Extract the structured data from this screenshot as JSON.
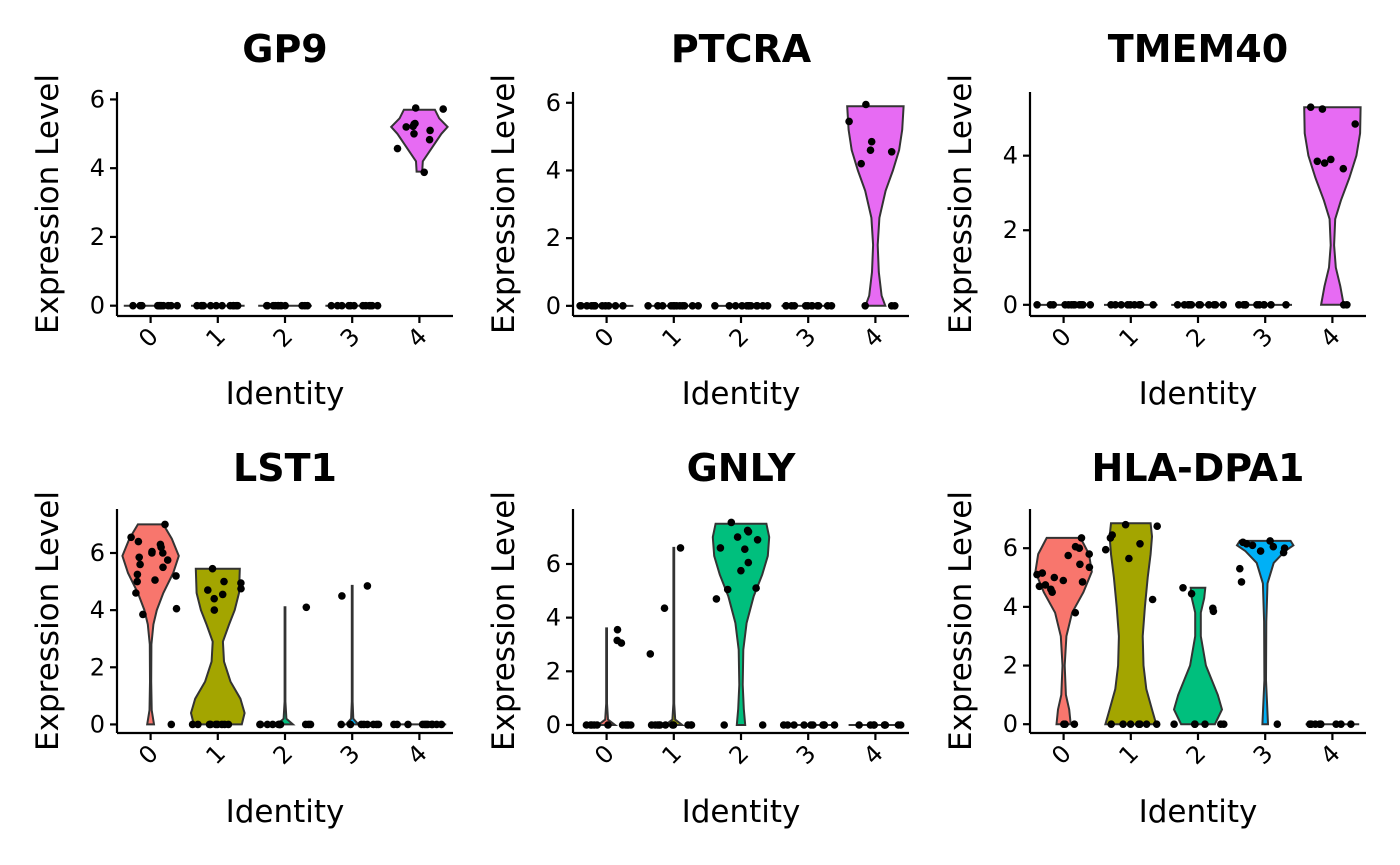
{
  "chart_data": [
    {
      "type": "violin",
      "title": "GP9",
      "xlabel": "Identity",
      "ylabel": "Expression Level",
      "categories": [
        "0",
        "1",
        "2",
        "3",
        "4"
      ],
      "ylim": [
        -0.3,
        6.1
      ],
      "yticks": [
        0,
        2,
        4,
        6
      ],
      "colors": [
        "#F8766D",
        "#A3A500",
        "#00BF7D",
        "#00B0F6",
        "#E76BF3"
      ],
      "groups": [
        {
          "category": "0",
          "violin": null,
          "values": [
            0,
            0,
            0,
            0,
            0,
            0,
            0,
            0,
            0,
            0,
            0,
            0
          ]
        },
        {
          "category": "1",
          "violin": null,
          "values": [
            0,
            0,
            0,
            0,
            0,
            0,
            0,
            0,
            0,
            0,
            0,
            0
          ]
        },
        {
          "category": "2",
          "violin": null,
          "values": [
            0,
            0,
            0,
            0,
            0,
            0,
            0,
            0,
            0,
            0,
            0,
            0
          ]
        },
        {
          "category": "3",
          "violin": null,
          "values": [
            0,
            0,
            0,
            0,
            0,
            0,
            0,
            0,
            0,
            0,
            0,
            0
          ]
        },
        {
          "category": "4",
          "violin": [
            [
              3.9,
              0.1
            ],
            [
              4.2,
              0.12
            ],
            [
              4.6,
              0.45
            ],
            [
              5.0,
              0.78
            ],
            [
              5.2,
              1.0
            ],
            [
              5.45,
              0.7
            ],
            [
              5.7,
              0.55
            ]
          ],
          "values": [
            3.88,
            4.57,
            4.83,
            5.0,
            5.1,
            5.2,
            5.22,
            5.28,
            5.3,
            5.72,
            5.75
          ]
        }
      ]
    },
    {
      "type": "violin",
      "title": "PTCRA",
      "xlabel": "Identity",
      "ylabel": "Expression Level",
      "categories": [
        "0",
        "1",
        "2",
        "3",
        "4"
      ],
      "ylim": [
        -0.3,
        6.2
      ],
      "yticks": [
        0,
        2,
        4,
        6
      ],
      "colors": [
        "#F8766D",
        "#A3A500",
        "#00BF7D",
        "#00B0F6",
        "#E76BF3"
      ],
      "groups": [
        {
          "category": "0",
          "violin": null,
          "values": [
            0,
            0,
            0,
            0,
            0,
            0,
            0,
            0,
            0,
            0,
            0,
            0
          ]
        },
        {
          "category": "1",
          "violin": null,
          "values": [
            0,
            0,
            0,
            0,
            0,
            0,
            0,
            0,
            0,
            0,
            0,
            0
          ]
        },
        {
          "category": "2",
          "violin": null,
          "values": [
            0,
            0,
            0,
            0,
            0,
            0,
            0,
            0,
            0,
            0,
            0,
            0
          ]
        },
        {
          "category": "3",
          "violin": null,
          "values": [
            0,
            0,
            0,
            0,
            0,
            0,
            0,
            0,
            0,
            0,
            0,
            0
          ]
        },
        {
          "category": "4",
          "violin": [
            [
              0,
              0.35
            ],
            [
              0.3,
              0.22
            ],
            [
              1.0,
              0.12
            ],
            [
              1.8,
              0.08
            ],
            [
              2.6,
              0.14
            ],
            [
              3.4,
              0.36
            ],
            [
              4.0,
              0.62
            ],
            [
              4.6,
              0.84
            ],
            [
              5.2,
              0.95
            ],
            [
              5.9,
              1.0
            ]
          ],
          "values": [
            0,
            0,
            0,
            4.2,
            4.55,
            4.6,
            4.85,
            5.45,
            5.95
          ]
        }
      ]
    },
    {
      "type": "violin",
      "title": "TMEM40",
      "xlabel": "Identity",
      "ylabel": "Expression Level",
      "categories": [
        "0",
        "1",
        "2",
        "3",
        "4"
      ],
      "ylim": [
        -0.3,
        5.6
      ],
      "yticks": [
        0,
        2,
        4
      ],
      "colors": [
        "#F8766D",
        "#A3A500",
        "#00BF7D",
        "#00B0F6",
        "#E76BF3"
      ],
      "groups": [
        {
          "category": "0",
          "violin": null,
          "values": [
            0,
            0,
            0,
            0,
            0,
            0,
            0,
            0,
            0,
            0,
            0,
            0
          ]
        },
        {
          "category": "1",
          "violin": null,
          "values": [
            0,
            0,
            0,
            0,
            0,
            0,
            0,
            0,
            0,
            0,
            0,
            0
          ]
        },
        {
          "category": "2",
          "violin": null,
          "values": [
            0,
            0,
            0,
            0,
            0,
            0,
            0,
            0,
            0,
            0,
            0,
            0
          ]
        },
        {
          "category": "3",
          "violin": null,
          "values": [
            0,
            0,
            0,
            0,
            0,
            0,
            0,
            0,
            0,
            0,
            0,
            0
          ]
        },
        {
          "category": "4",
          "violin": [
            [
              0,
              0.4
            ],
            [
              0.5,
              0.28
            ],
            [
              1.0,
              0.12
            ],
            [
              1.6,
              0.06
            ],
            [
              2.3,
              0.1
            ],
            [
              2.8,
              0.3
            ],
            [
              3.4,
              0.6
            ],
            [
              4.0,
              0.85
            ],
            [
              4.6,
              0.98
            ],
            [
              5.3,
              1.0
            ]
          ],
          "values": [
            0,
            0,
            3.65,
            3.8,
            3.85,
            3.9,
            4.85,
            5.25,
            5.3
          ]
        }
      ]
    },
    {
      "type": "violin",
      "title": "LST1",
      "xlabel": "Identity",
      "ylabel": "Expression Level",
      "categories": [
        "0",
        "1",
        "2",
        "3",
        "4"
      ],
      "ylim": [
        -0.3,
        7.4
      ],
      "yticks": [
        0,
        2,
        4,
        6
      ],
      "colors": [
        "#F8766D",
        "#A3A500",
        "#00BF7D",
        "#00B0F6",
        "#E76BF3"
      ],
      "groups": [
        {
          "category": "0",
          "violin": [
            [
              0,
              0.12
            ],
            [
              0.5,
              0.04
            ],
            [
              1.5,
              0.02
            ],
            [
              2.8,
              0.03
            ],
            [
              3.5,
              0.1
            ],
            [
              4.0,
              0.22
            ],
            [
              4.6,
              0.45
            ],
            [
              5.3,
              0.8
            ],
            [
              5.9,
              1.0
            ],
            [
              6.5,
              0.75
            ],
            [
              7.0,
              0.45
            ]
          ],
          "values": [
            0,
            3.85,
            4.05,
            4.6,
            5.0,
            5.05,
            5.2,
            5.25,
            5.5,
            5.6,
            5.75,
            5.85,
            6.0,
            6.0,
            6.05,
            6.2,
            6.3,
            6.4,
            6.55,
            7.0
          ]
        },
        {
          "category": "1",
          "violin": [
            [
              0,
              0.85
            ],
            [
              0.4,
              0.95
            ],
            [
              0.9,
              0.8
            ],
            [
              1.5,
              0.45
            ],
            [
              2.2,
              0.22
            ],
            [
              2.9,
              0.18
            ],
            [
              3.5,
              0.4
            ],
            [
              4.0,
              0.6
            ],
            [
              4.6,
              0.75
            ],
            [
              5.45,
              0.78
            ]
          ],
          "values": [
            0,
            0,
            0,
            0,
            0,
            0,
            0,
            0,
            0,
            4.0,
            4.4,
            4.55,
            4.7,
            4.75,
            4.95,
            5.0,
            5.45
          ]
        },
        {
          "category": "2",
          "violin": [
            [
              0,
              0.28
            ],
            [
              0.2,
              0.05
            ],
            [
              0.8,
              0.015
            ],
            [
              4.1,
              0.015
            ]
          ],
          "values": [
            0,
            0,
            0,
            0,
            0,
            0,
            0,
            0,
            0,
            0,
            0,
            4.1
          ]
        },
        {
          "category": "3",
          "violin": [
            [
              0,
              0.22
            ],
            [
              0.2,
              0.04
            ],
            [
              0.8,
              0.015
            ],
            [
              4.85,
              0.015
            ]
          ],
          "values": [
            0,
            0,
            0,
            0,
            0,
            0,
            0,
            0,
            4.5,
            4.85
          ]
        },
        {
          "category": "4",
          "violin": null,
          "values": [
            0,
            0,
            0,
            0,
            0,
            0,
            0,
            0,
            0,
            0,
            0
          ]
        }
      ]
    },
    {
      "type": "violin",
      "title": "GNLY",
      "xlabel": "Identity",
      "ylabel": "Expression Level",
      "categories": [
        "0",
        "1",
        "2",
        "3",
        "4"
      ],
      "ylim": [
        -0.3,
        7.9
      ],
      "yticks": [
        0,
        2,
        4,
        6
      ],
      "colors": [
        "#F8766D",
        "#A3A500",
        "#00BF7D",
        "#00B0F6",
        "#E76BF3"
      ],
      "groups": [
        {
          "category": "0",
          "violin": [
            [
              0,
              0.3
            ],
            [
              0.2,
              0.05
            ],
            [
              0.8,
              0.015
            ],
            [
              3.6,
              0.015
            ]
          ],
          "values": [
            0,
            0,
            0,
            0,
            0,
            0,
            0,
            0,
            0,
            0,
            0,
            3.05,
            3.15,
            3.55
          ]
        },
        {
          "category": "1",
          "violin": [
            [
              0,
              0.3
            ],
            [
              0.2,
              0.05
            ],
            [
              0.8,
              0.015
            ],
            [
              6.6,
              0.015
            ]
          ],
          "values": [
            0,
            0,
            0,
            0,
            0,
            0,
            0,
            0,
            0,
            0,
            0,
            2.65,
            4.35,
            6.6
          ]
        },
        {
          "category": "2",
          "violin": [
            [
              0,
              0.15
            ],
            [
              0.6,
              0.1
            ],
            [
              1.5,
              0.06
            ],
            [
              2.8,
              0.08
            ],
            [
              3.8,
              0.2
            ],
            [
              4.8,
              0.45
            ],
            [
              5.6,
              0.75
            ],
            [
              6.3,
              0.95
            ],
            [
              7.0,
              1.0
            ],
            [
              7.5,
              0.9
            ]
          ],
          "values": [
            0,
            0,
            4.7,
            5.05,
            5.1,
            5.75,
            6.05,
            6.55,
            6.6,
            6.9,
            7.0,
            7.2,
            7.25,
            7.55
          ]
        },
        {
          "category": "3",
          "violin": null,
          "values": [
            0,
            0,
            0,
            0,
            0,
            0,
            0,
            0,
            0,
            0
          ]
        },
        {
          "category": "4",
          "violin": null,
          "values": [
            0,
            0,
            0,
            0,
            0,
            0,
            0,
            0,
            0
          ]
        }
      ]
    },
    {
      "type": "violin",
      "title": "HLA-DPA1",
      "xlabel": "Identity",
      "ylabel": "Expression Level",
      "categories": [
        "0",
        "1",
        "2",
        "3",
        "4"
      ],
      "ylim": [
        -0.3,
        7.2
      ],
      "yticks": [
        0,
        2,
        4,
        6
      ],
      "colors": [
        "#F8766D",
        "#A3A500",
        "#00BF7D",
        "#00B0F6",
        "#E76BF3"
      ],
      "groups": [
        {
          "category": "0",
          "violin": [
            [
              0,
              0.25
            ],
            [
              0.5,
              0.2
            ],
            [
              1.0,
              0.08
            ],
            [
              2.0,
              0.04
            ],
            [
              3.0,
              0.1
            ],
            [
              3.8,
              0.3
            ],
            [
              4.5,
              0.7
            ],
            [
              5.2,
              1.0
            ],
            [
              5.8,
              0.9
            ],
            [
              6.35,
              0.6
            ]
          ],
          "values": [
            0,
            0,
            0,
            3.8,
            4.5,
            4.6,
            4.7,
            4.75,
            4.85,
            4.9,
            5.0,
            5.1,
            5.15,
            5.35,
            5.45,
            5.75,
            5.8,
            6.0,
            6.05,
            6.35
          ]
        },
        {
          "category": "1",
          "violin": [
            [
              0,
              0.9
            ],
            [
              0.5,
              0.75
            ],
            [
              1.2,
              0.55
            ],
            [
              2.0,
              0.45
            ],
            [
              3.0,
              0.42
            ],
            [
              4.0,
              0.5
            ],
            [
              5.0,
              0.6
            ],
            [
              5.8,
              0.7
            ],
            [
              6.4,
              0.75
            ],
            [
              6.85,
              0.7
            ]
          ],
          "values": [
            0,
            0,
            0,
            0,
            0,
            0,
            0,
            0,
            4.25,
            5.65,
            5.95,
            6.15,
            6.35,
            6.45,
            6.75,
            6.8
          ]
        },
        {
          "category": "2",
          "violin": [
            [
              0,
              0.6
            ],
            [
              0.5,
              0.85
            ],
            [
              1.0,
              0.7
            ],
            [
              2.0,
              0.28
            ],
            [
              3.0,
              0.1
            ],
            [
              3.8,
              0.1
            ],
            [
              4.3,
              0.22
            ],
            [
              4.65,
              0.26
            ]
          ],
          "values": [
            0,
            0,
            0,
            0,
            0,
            0,
            3.85,
            3.95,
            4.45,
            4.65
          ]
        },
        {
          "category": "3",
          "violin": [
            [
              0,
              0.1
            ],
            [
              1.5,
              0.03
            ],
            [
              3.5,
              0.04
            ],
            [
              4.8,
              0.08
            ],
            [
              5.5,
              0.3
            ],
            [
              5.9,
              0.7
            ],
            [
              6.1,
              1.0
            ],
            [
              6.25,
              0.9
            ]
          ],
          "values": [
            0,
            4.85,
            5.3,
            5.85,
            5.9,
            6.0,
            6.05,
            6.1,
            6.15,
            6.2,
            6.25
          ]
        },
        {
          "category": "4",
          "violin": null,
          "values": [
            0,
            0,
            0,
            0,
            0,
            0,
            0,
            0,
            0,
            0
          ]
        }
      ]
    }
  ]
}
